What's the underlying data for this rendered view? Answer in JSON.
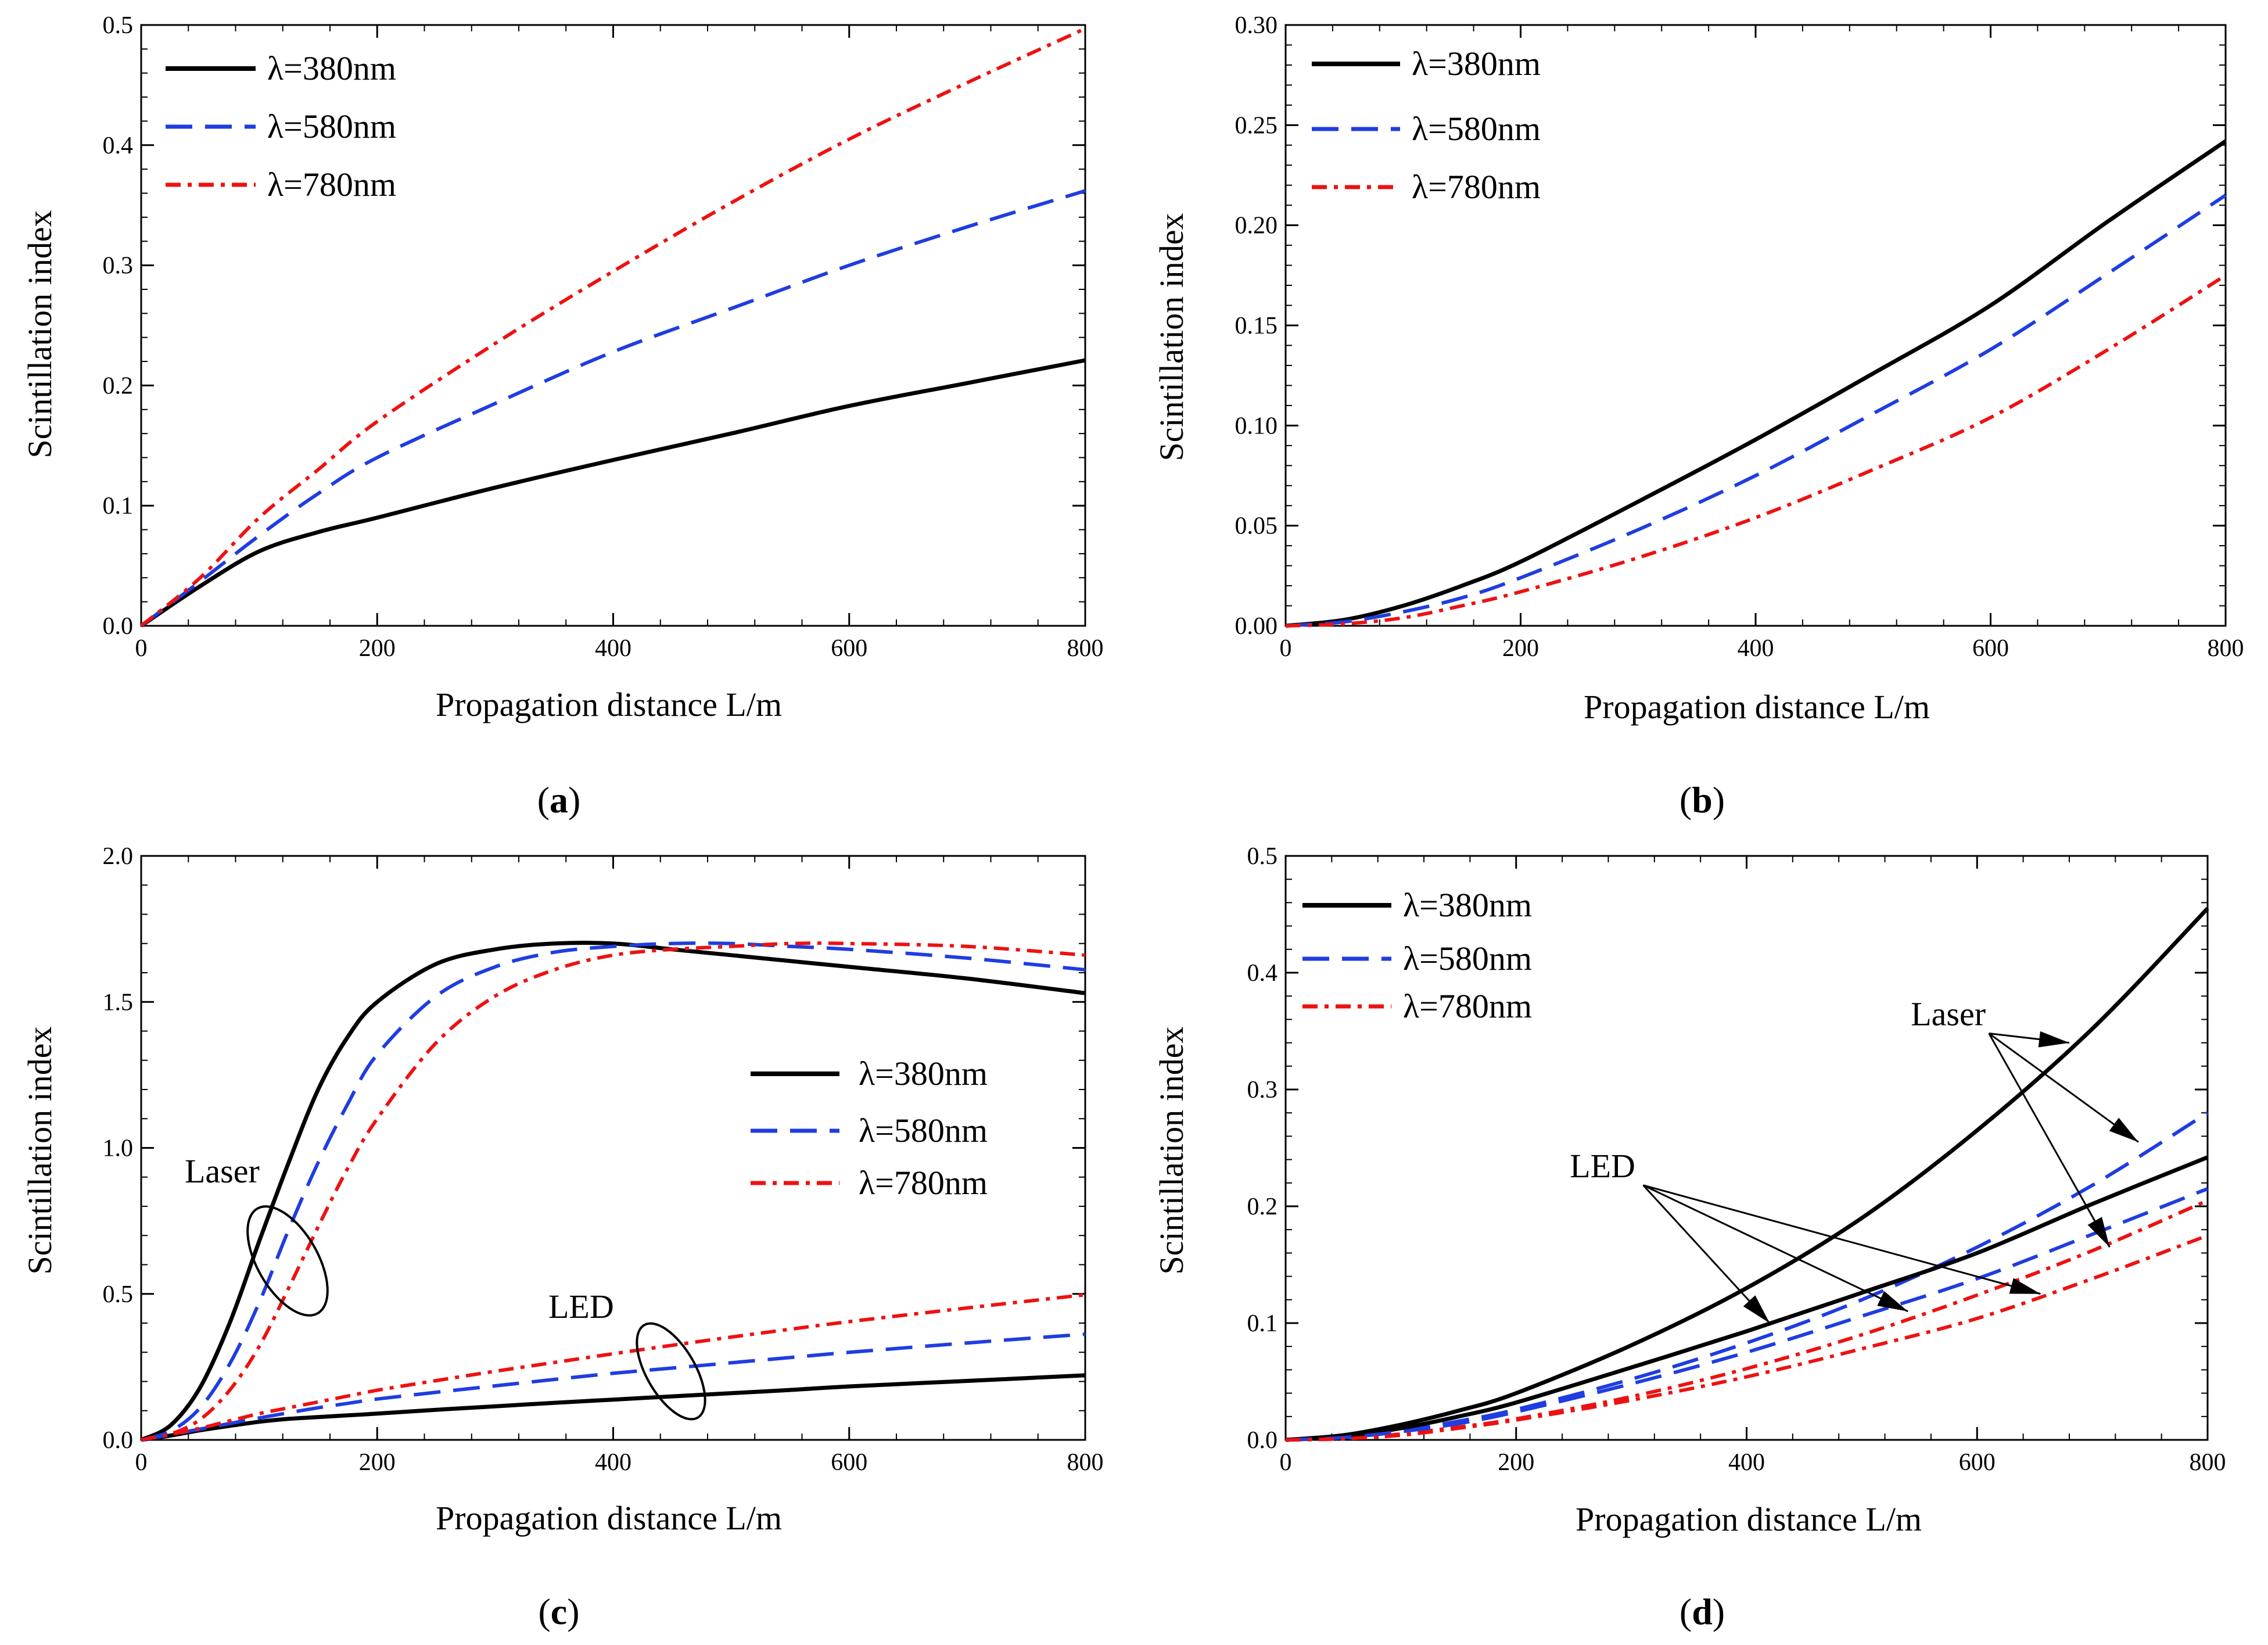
{
  "chart_data": [
    {
      "id": "a",
      "type": "line",
      "caption": "a",
      "xlabel": "Propagation distance L/m",
      "ylabel": "Scintillation index",
      "xlim": [
        0,
        800
      ],
      "ylim": [
        0,
        0.5
      ],
      "xticks": [
        "0",
        "200",
        "400",
        "600",
        "800"
      ],
      "yticks": [
        "0.0",
        "0.1",
        "0.2",
        "0.3",
        "0.4",
        "0.5"
      ],
      "legend_position": "top-left",
      "x": [
        0,
        50,
        100,
        150,
        200,
        300,
        400,
        500,
        600,
        700,
        800
      ],
      "series": [
        {
          "name": "λ=380nm",
          "color": "#000000",
          "style": "solid",
          "values": [
            0,
            0.033,
            0.062,
            0.078,
            0.09,
            0.115,
            0.138,
            0.16,
            0.183,
            0.202,
            0.221
          ]
        },
        {
          "name": "λ=580nm",
          "color": "#1f3de0",
          "style": "dashed",
          "values": [
            0,
            0.037,
            0.075,
            0.11,
            0.14,
            0.185,
            0.228,
            0.264,
            0.3,
            0.332,
            0.362
          ]
        },
        {
          "name": "λ=780nm",
          "color": "#ee1111",
          "style": "dashdot",
          "values": [
            0,
            0.04,
            0.09,
            0.13,
            0.17,
            0.235,
            0.295,
            0.352,
            0.405,
            0.452,
            0.497
          ]
        }
      ]
    },
    {
      "id": "b",
      "type": "line",
      "caption": "b",
      "xlabel": "Propagation distance L/m",
      "ylabel": "Scintillation index",
      "xlim": [
        0,
        800
      ],
      "ylim": [
        0,
        0.3
      ],
      "xticks": [
        "0",
        "200",
        "400",
        "600",
        "800"
      ],
      "yticks": [
        "0.00",
        "0.05",
        "0.10",
        "0.15",
        "0.20",
        "0.25",
        "0.30"
      ],
      "legend_position": "top-left",
      "x": [
        0,
        50,
        100,
        150,
        200,
        300,
        400,
        500,
        600,
        700,
        800
      ],
      "series": [
        {
          "name": "λ=380nm",
          "color": "#000000",
          "style": "solid",
          "values": [
            0,
            0.003,
            0.01,
            0.02,
            0.032,
            0.062,
            0.093,
            0.126,
            0.16,
            0.202,
            0.242
          ]
        },
        {
          "name": "λ=580nm",
          "color": "#1f3de0",
          "style": "dashed",
          "values": [
            0,
            0.002,
            0.007,
            0.014,
            0.024,
            0.048,
            0.075,
            0.106,
            0.138,
            0.176,
            0.215
          ]
        },
        {
          "name": "λ=780nm",
          "color": "#ee1111",
          "style": "dashdot",
          "values": [
            0,
            0.001,
            0.004,
            0.01,
            0.017,
            0.034,
            0.054,
            0.078,
            0.104,
            0.138,
            0.175
          ]
        }
      ]
    },
    {
      "id": "c",
      "type": "line",
      "caption": "c",
      "xlabel": "Propagation distance L/m",
      "ylabel": "Scintillation index",
      "xlim": [
        0,
        800
      ],
      "ylim": [
        0,
        2.0
      ],
      "xticks": [
        "0",
        "200",
        "400",
        "600",
        "800"
      ],
      "yticks": [
        "0.0",
        "0.5",
        "1.0",
        "1.5",
        "2.0"
      ],
      "legend_position": "center-right",
      "x": [
        0,
        25,
        50,
        75,
        100,
        125,
        150,
        175,
        200,
        250,
        300,
        350,
        400,
        450,
        500,
        550,
        600,
        700,
        800
      ],
      "series": [
        {
          "name": "λ=380nm",
          "group": "Laser",
          "color": "#000000",
          "style": "solid",
          "values": [
            0,
            0.05,
            0.18,
            0.4,
            0.68,
            0.95,
            1.2,
            1.38,
            1.5,
            1.63,
            1.68,
            1.7,
            1.7,
            1.68,
            1.66,
            1.64,
            1.62,
            1.58,
            1.53
          ]
        },
        {
          "name": "λ=580nm",
          "group": "Laser",
          "color": "#1f3de0",
          "style": "dashed",
          "values": [
            0,
            0.03,
            0.11,
            0.26,
            0.47,
            0.72,
            0.95,
            1.15,
            1.32,
            1.52,
            1.62,
            1.67,
            1.69,
            1.7,
            1.7,
            1.69,
            1.68,
            1.65,
            1.61
          ]
        },
        {
          "name": "λ=780nm",
          "group": "Laser",
          "color": "#ee1111",
          "style": "dashdot",
          "values": [
            0,
            0.02,
            0.07,
            0.17,
            0.32,
            0.52,
            0.73,
            0.93,
            1.1,
            1.36,
            1.52,
            1.61,
            1.66,
            1.68,
            1.69,
            1.7,
            1.7,
            1.69,
            1.66
          ]
        },
        {
          "name": "λ=380nm",
          "group": "LED",
          "color": "#000000",
          "style": "solid",
          "values": [
            0,
            0.015,
            0.033,
            0.048,
            0.062,
            0.072,
            0.078,
            0.084,
            0.09,
            0.103,
            0.115,
            0.127,
            0.138,
            0.149,
            0.16,
            0.171,
            0.183,
            0.202,
            0.221
          ]
        },
        {
          "name": "λ=580nm",
          "group": "LED",
          "color": "#1f3de0",
          "style": "dashed",
          "values": [
            0,
            0.018,
            0.037,
            0.056,
            0.075,
            0.093,
            0.11,
            0.125,
            0.14,
            0.163,
            0.185,
            0.207,
            0.228,
            0.246,
            0.264,
            0.282,
            0.3,
            0.332,
            0.362
          ]
        },
        {
          "name": "λ=780nm",
          "group": "LED",
          "color": "#ee1111",
          "style": "dashdot",
          "values": [
            0,
            0.019,
            0.04,
            0.065,
            0.09,
            0.11,
            0.13,
            0.15,
            0.17,
            0.203,
            0.235,
            0.265,
            0.295,
            0.324,
            0.352,
            0.379,
            0.405,
            0.452,
            0.497
          ]
        }
      ],
      "annotations": [
        {
          "text": "Laser",
          "x": 145,
          "y": 0.56
        },
        {
          "text": "LED",
          "x": 445,
          "y": 0.26
        }
      ]
    },
    {
      "id": "d",
      "type": "line",
      "caption": "d",
      "xlabel": "Propagation distance L/m",
      "ylabel": "Scintillation index",
      "xlim": [
        0,
        800
      ],
      "ylim": [
        0,
        0.5
      ],
      "xticks": [
        "0",
        "200",
        "400",
        "600",
        "800"
      ],
      "yticks": [
        "0.0",
        "0.1",
        "0.2",
        "0.3",
        "0.4",
        "0.5"
      ],
      "legend_position": "top-left",
      "x": [
        0,
        50,
        100,
        150,
        200,
        300,
        400,
        500,
        600,
        700,
        800
      ],
      "series": [
        {
          "name": "λ=380nm",
          "group": "Laser",
          "color": "#000000",
          "style": "solid",
          "values": [
            0,
            0.004,
            0.013,
            0.025,
            0.04,
            0.081,
            0.13,
            0.19,
            0.265,
            0.352,
            0.455
          ]
        },
        {
          "name": "λ=580nm",
          "group": "Laser",
          "color": "#1f3de0",
          "style": "dashed",
          "values": [
            0,
            0.002,
            0.008,
            0.016,
            0.026,
            0.052,
            0.083,
            0.12,
            0.165,
            0.218,
            0.28
          ]
        },
        {
          "name": "λ=780nm",
          "group": "Laser",
          "color": "#ee1111",
          "style": "dashdot",
          "values": [
            0,
            0.001,
            0.005,
            0.011,
            0.018,
            0.037,
            0.061,
            0.09,
            0.124,
            0.162,
            0.205
          ]
        },
        {
          "name": "λ=380nm",
          "group": "LED",
          "color": "#000000",
          "style": "solid",
          "values": [
            0,
            0.003,
            0.01,
            0.02,
            0.032,
            0.062,
            0.093,
            0.126,
            0.16,
            0.202,
            0.242
          ]
        },
        {
          "name": "λ=580nm",
          "group": "LED",
          "color": "#1f3de0",
          "style": "dashed",
          "values": [
            0,
            0.002,
            0.007,
            0.014,
            0.024,
            0.048,
            0.075,
            0.106,
            0.138,
            0.176,
            0.215
          ]
        },
        {
          "name": "λ=780nm",
          "group": "LED",
          "color": "#ee1111",
          "style": "dashdot",
          "values": [
            0,
            0.001,
            0.004,
            0.01,
            0.017,
            0.034,
            0.054,
            0.078,
            0.104,
            0.138,
            0.175
          ]
        }
      ],
      "annotations": [
        {
          "text": "Laser",
          "x": 575,
          "y": 0.355,
          "targets": [
            [
              680,
              0.34
            ],
            [
              740,
              0.255
            ],
            [
              715,
              0.165
            ]
          ]
        },
        {
          "text": "LED",
          "x": 275,
          "y": 0.225,
          "targets": [
            [
              420,
              0.1
            ],
            [
              540,
              0.11
            ],
            [
              655,
              0.125
            ]
          ]
        }
      ]
    }
  ]
}
